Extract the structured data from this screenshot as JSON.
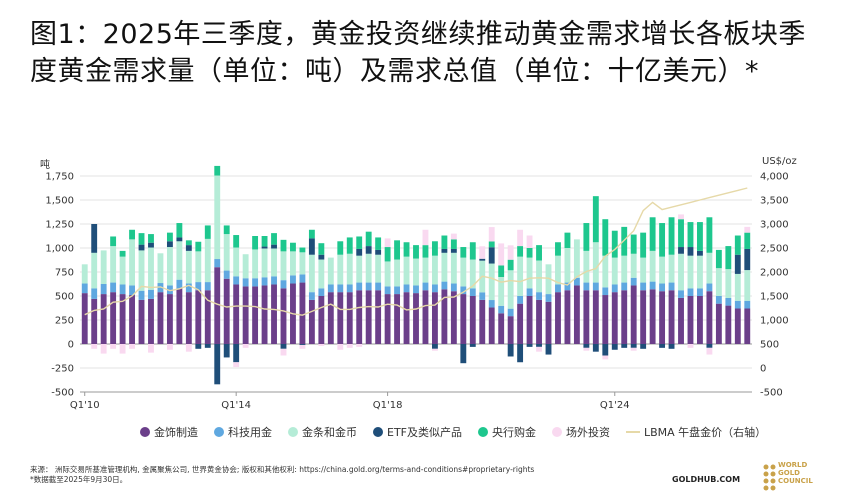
{
  "title": "图1：2025年三季度，黄金投资继续推动黄金需求增长各板块季度黄金需求量（单位：吨）及需求总值（单位：十亿美元）*",
  "chart_data": {
    "type": "bar",
    "stacked": true,
    "left_unit": "吨",
    "right_unit": "US$/oz",
    "ylim_left": [
      -500,
      1750
    ],
    "yticks_left": [
      "1,750",
      "1,500",
      "1,250",
      "1,000",
      "750",
      "500",
      "250",
      "0",
      "-250",
      "-500"
    ],
    "ylim_right": [
      -500,
      4000
    ],
    "yticks_right": [
      "4,000",
      "3,500",
      "3,000",
      "2,500",
      "2,000",
      "1,500",
      "1,000",
      "500",
      "0",
      "-500"
    ],
    "xtick_labels": [
      "Q1'10",
      "Q1'14",
      "Q1'18",
      "Q1'24"
    ],
    "xtick_index": [
      0,
      16,
      32,
      56
    ],
    "series": [
      {
        "name": "金饰制造",
        "color": "#6b3f8a",
        "values": [
          530,
          470,
          520,
          540,
          520,
          510,
          460,
          470,
          540,
          520,
          580,
          540,
          560,
          560,
          800,
          680,
          620,
          600,
          600,
          610,
          620,
          580,
          630,
          640,
          460,
          500,
          540,
          540,
          540,
          560,
          560,
          560,
          520,
          520,
          540,
          530,
          560,
          540,
          570,
          550,
          520,
          500,
          460,
          380,
          320,
          290,
          420,
          500,
          460,
          440,
          540,
          560,
          610,
          560,
          560,
          510,
          540,
          560,
          610,
          560,
          570,
          550,
          560,
          480,
          500,
          500,
          550,
          420,
          400,
          370,
          370
        ]
      },
      {
        "name": "科技用金",
        "color": "#5fa8e0",
        "values": [
          100,
          110,
          105,
          100,
          100,
          100,
          95,
          95,
          95,
          90,
          90,
          90,
          85,
          85,
          85,
          85,
          85,
          85,
          85,
          85,
          85,
          85,
          85,
          85,
          80,
          80,
          80,
          80,
          80,
          80,
          80,
          80,
          80,
          80,
          80,
          80,
          80,
          80,
          80,
          80,
          80,
          80,
          78,
          78,
          78,
          78,
          80,
          80,
          80,
          80,
          80,
          80,
          80,
          80,
          80,
          80,
          80,
          80,
          80,
          80,
          80,
          80,
          80,
          80,
          80,
          80,
          80,
          80,
          80,
          80,
          80
        ]
      },
      {
        "name": "金条和金币",
        "color": "#b5ecd7",
        "values": [
          200,
          370,
          350,
          380,
          290,
          480,
          420,
          440,
          310,
          400,
          400,
          340,
          320,
          450,
          870,
          380,
          300,
          250,
          300,
          300,
          290,
          300,
          250,
          230,
          390,
          300,
          280,
          310,
          320,
          280,
          300,
          290,
          260,
          280,
          290,
          280,
          260,
          300,
          300,
          320,
          300,
          300,
          330,
          380,
          300,
          400,
          410,
          320,
          330,
          310,
          300,
          360,
          400,
          330,
          420,
          330,
          280,
          280,
          250,
          260,
          320,
          280,
          290,
          380,
          340,
          340,
          320,
          290,
          300,
          280,
          320
        ]
      },
      {
        "name": "ETF及类似产品",
        "color": "#1f4e79",
        "values": [
          0,
          300,
          0,
          0,
          0,
          0,
          60,
          50,
          0,
          60,
          40,
          60,
          -50,
          -40,
          -420,
          -140,
          -190,
          0,
          0,
          20,
          40,
          -50,
          0,
          -10,
          170,
          50,
          0,
          0,
          0,
          70,
          80,
          50,
          0,
          0,
          0,
          0,
          0,
          -50,
          40,
          40,
          -200,
          -30,
          20,
          170,
          0,
          -130,
          -190,
          -30,
          -30,
          -110,
          0,
          0,
          0,
          -40,
          -80,
          -120,
          -60,
          -40,
          -40,
          -50,
          0,
          -40,
          -50,
          70,
          90,
          50,
          -40,
          0,
          0,
          200,
          220
        ]
      },
      {
        "name": "央行购金",
        "color": "#1ec78e",
        "values": [
          0,
          0,
          0,
          100,
          60,
          100,
          120,
          90,
          0,
          90,
          150,
          50,
          100,
          140,
          100,
          90,
          130,
          0,
          140,
          110,
          120,
          120,
          90,
          50,
          90,
          120,
          0,
          140,
          170,
          130,
          150,
          130,
          150,
          200,
          150,
          140,
          130,
          150,
          140,
          100,
          110,
          180,
          0,
          60,
          120,
          110,
          110,
          100,
          160,
          0,
          140,
          160,
          0,
          290,
          480,
          380,
          280,
          300,
          200,
          260,
          350,
          350,
          390,
          290,
          260,
          300,
          370,
          190,
          240,
          200,
          170
        ]
      },
      {
        "name": "场外投资",
        "color": "#f9d9f0",
        "values": [
          0,
          -50,
          -100,
          -50,
          -100,
          -50,
          0,
          -90,
          0,
          -60,
          0,
          -80,
          0,
          0,
          0,
          0,
          -50,
          -40,
          0,
          0,
          0,
          -70,
          0,
          -40,
          0,
          -20,
          0,
          -60,
          -40,
          -30,
          0,
          0,
          90,
          0,
          0,
          0,
          160,
          -20,
          0,
          60,
          0,
          0,
          130,
          150,
          230,
          150,
          170,
          130,
          -50,
          0,
          0,
          0,
          0,
          -30,
          0,
          -40,
          0,
          0,
          -30,
          0,
          0,
          0,
          0,
          50,
          -40,
          0,
          -70,
          0,
          0,
          0,
          60
        ]
      },
      {
        "name": "LBMA 午盘金价（右轴）",
        "color": "#e6d9a8",
        "axis": "right",
        "values": [
          1110,
          1200,
          1230,
          1370,
          1390,
          1500,
          1700,
          1680,
          1690,
          1610,
          1650,
          1720,
          1630,
          1410,
          1330,
          1270,
          1290,
          1290,
          1280,
          1230,
          1220,
          1190,
          1130,
          1100,
          1180,
          1260,
          1330,
          1220,
          1220,
          1260,
          1280,
          1270,
          1330,
          1310,
          1210,
          1230,
          1300,
          1310,
          1470,
          1480,
          1580,
          1710,
          1910,
          1870,
          1790,
          1820,
          1800,
          1870,
          1880,
          1870,
          1780,
          1730,
          1900,
          2010,
          2070,
          2330,
          2470,
          2660,
          2860,
          3280,
          3450,
          3300,
          3350,
          3400,
          3450,
          3500,
          3550,
          3600,
          3650,
          3700,
          3750
        ]
      }
    ]
  },
  "footer": {
    "source": "来源： 洲际交易所基准管理机构, 金属聚焦公司, 世界黄金协会; 版权和其他权利: https://china.gold.org/terms-and-conditions#proprietary-rights",
    "note": "*数据截至2025年9月30日。",
    "site": "GOLDHUB.COM",
    "logo_line1": "WORLD",
    "logo_line2": "GOLD",
    "logo_line3": "COUNCIL"
  }
}
